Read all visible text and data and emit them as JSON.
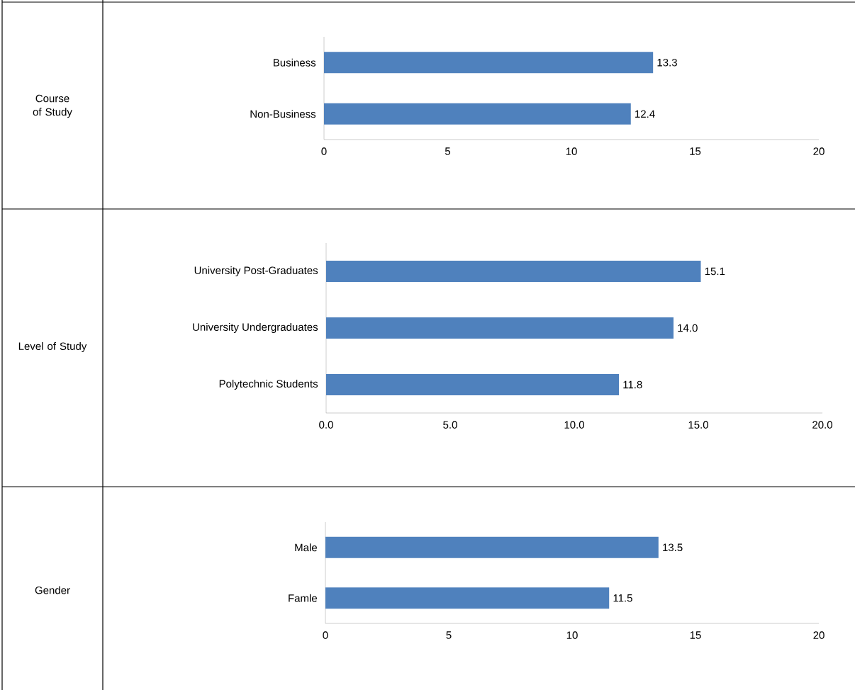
{
  "chart_data": [
    {
      "type": "bar",
      "orientation": "horizontal",
      "ylabel": "Course of Study",
      "categories": [
        "Business",
        "Non-Business"
      ],
      "values": [
        13.3,
        12.4
      ],
      "value_labels": [
        "13.3",
        "12.4"
      ],
      "color": "#4f81bd",
      "xlim": [
        0,
        20
      ],
      "xticks": [
        0,
        5,
        10,
        15,
        20
      ]
    },
    {
      "type": "bar",
      "orientation": "horizontal",
      "ylabel": "Level of Study",
      "categories": [
        "University Post-Graduates",
        "University Undergraduates",
        "Polytechnic Students"
      ],
      "values": [
        15.1,
        14.0,
        11.8
      ],
      "value_labels": [
        "15.1",
        "14.0",
        "11.8"
      ],
      "color": "#4f81bd",
      "xlim": [
        0,
        20
      ],
      "xticks": [
        {
          "value": 0,
          "label": "0.0"
        },
        {
          "value": 5,
          "label": "5.0"
        },
        {
          "value": 10,
          "label": "10.0"
        },
        {
          "value": 15,
          "label": "15.0"
        },
        {
          "value": 20,
          "label": "20.0"
        }
      ]
    },
    {
      "type": "bar",
      "orientation": "horizontal",
      "ylabel": "Gender",
      "categories": [
        "Male",
        "Famle"
      ],
      "values": [
        13.5,
        11.5
      ],
      "value_labels": [
        "13.5",
        "11.5"
      ],
      "color": "#4f81bd",
      "xlim": [
        0,
        20
      ],
      "xticks": [
        0,
        5,
        10,
        15,
        20
      ]
    }
  ]
}
